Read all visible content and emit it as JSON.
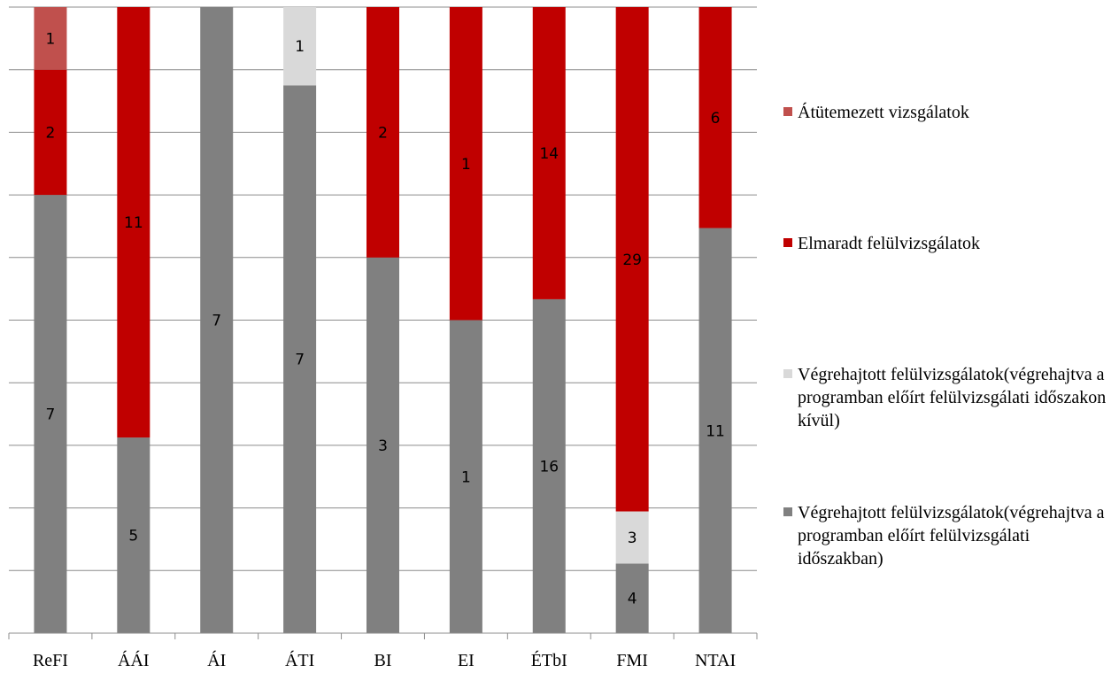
{
  "chart_data": {
    "type": "bar",
    "stacked": true,
    "percent_stacked": true,
    "categories": [
      "ReFI",
      "ÁÁI",
      "ÁI",
      "ÁTI",
      "BI",
      "EI",
      "ÉTbI",
      "FMI",
      "NTAI"
    ],
    "series": [
      {
        "name": "Végrehajtott felülvizsgálatok(végrehajtva a programban előírt felülvizsgálati időszakban)",
        "color": "#808080",
        "values": [
          7,
          5,
          7,
          7,
          3,
          1,
          16,
          4,
          11
        ]
      },
      {
        "name": "Végrehajtott felülvizsgálatok(végrehajtva a programban előírt felülvizsgálati időszakon kívül)",
        "color": "#d9d9d9",
        "values": [
          0,
          0,
          0,
          1,
          0,
          0,
          0,
          3,
          0
        ]
      },
      {
        "name": "Elmaradt felülvizsgálatok",
        "color": "#c00000",
        "values": [
          2,
          11,
          0,
          0,
          2,
          1,
          14,
          29,
          6
        ]
      },
      {
        "name": "Átütemezett vizsgálatok",
        "color": "#c0504d",
        "values": [
          1,
          0,
          0,
          0,
          0,
          0,
          0,
          0,
          0
        ]
      }
    ],
    "ylim": [
      0,
      100
    ],
    "grid": true,
    "legend_position": "right",
    "legend_order": [
      3,
      2,
      1,
      0
    ]
  }
}
